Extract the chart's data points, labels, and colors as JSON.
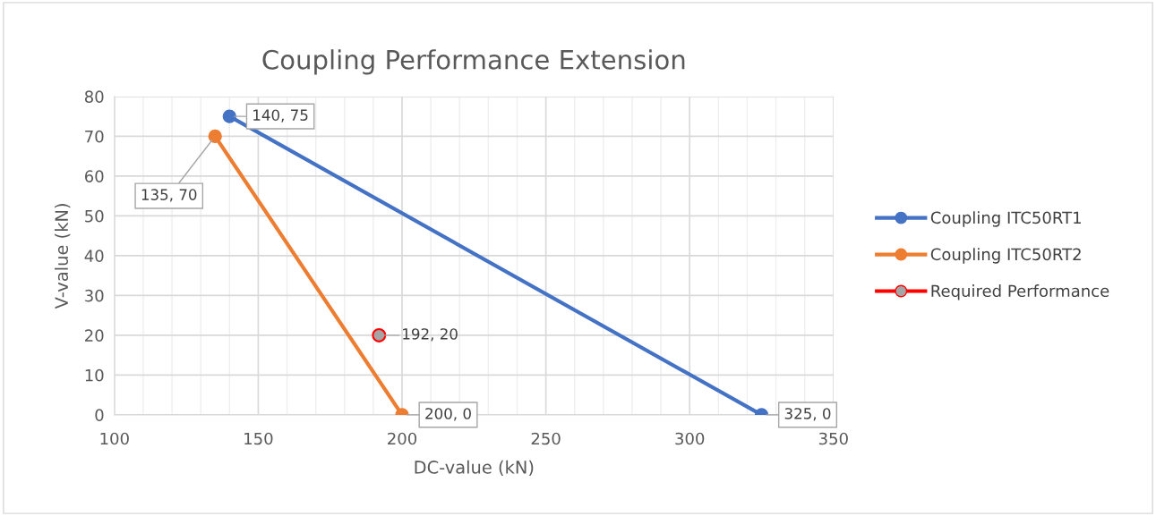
{
  "chart_data": {
    "type": "line",
    "title": "Coupling Performance Extension",
    "xlabel": "DC-value (kN)",
    "ylabel": "V-value (kN)",
    "xlim": [
      100,
      350
    ],
    "xticks": [
      100,
      150,
      200,
      250,
      300,
      350
    ],
    "ylim": [
      0,
      80
    ],
    "yticks": [
      0,
      10,
      20,
      30,
      40,
      50,
      60,
      70,
      80
    ],
    "grid": true,
    "legend": "right",
    "marker": "circle",
    "series": [
      {
        "name": "Coupling ITC50RT1",
        "color": "#4472c4",
        "x": [
          140,
          325
        ],
        "values": [
          75,
          0
        ],
        "value_labels": [
          "140, 75",
          "325, 0"
        ]
      },
      {
        "name": "Coupling ITC50RT2",
        "color": "#ed7d31",
        "x": [
          135,
          200
        ],
        "values": [
          70,
          0
        ],
        "value_labels": [
          "135, 70",
          "200, 0"
        ]
      },
      {
        "name": "Required Performance",
        "color": "#ff0000",
        "x": [
          192
        ],
        "values": [
          20
        ],
        "value_labels": [
          "192, 20"
        ]
      }
    ]
  }
}
